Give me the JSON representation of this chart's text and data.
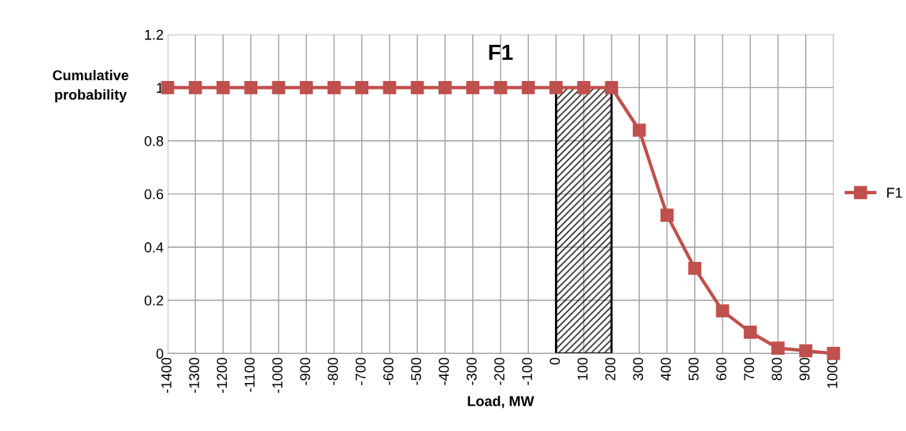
{
  "chart_data": {
    "type": "line",
    "title": "F1",
    "xlabel": "Load, MW",
    "ylabel": "Cumulative probability",
    "categories": [
      "-1400",
      "-1300",
      "-1200",
      "-1100",
      "-1000",
      "-900",
      "-800",
      "-700",
      "-600",
      "-500",
      "-400",
      "-300",
      "-200",
      "-100",
      "0",
      "100",
      "200",
      "300",
      "400",
      "500",
      "600",
      "700",
      "800",
      "900",
      "1000"
    ],
    "series": [
      {
        "name": "F1",
        "color": "#c0504d",
        "values": [
          1,
          1,
          1,
          1,
          1,
          1,
          1,
          1,
          1,
          1,
          1,
          1,
          1,
          1,
          1,
          1,
          1,
          0.84,
          0.52,
          0.32,
          0.16,
          0.08,
          0.02,
          0.01,
          0
        ]
      }
    ],
    "bands": [
      {
        "axis": "x",
        "from": "0",
        "to": "200",
        "color": "#000000"
      }
    ],
    "ylim": [
      0,
      1.2
    ],
    "yticks": [
      0,
      0.2,
      0.4,
      0.6,
      0.8,
      1,
      1.2
    ],
    "grid": true,
    "legend": "right",
    "marker": "square",
    "line_style": "solid"
  }
}
